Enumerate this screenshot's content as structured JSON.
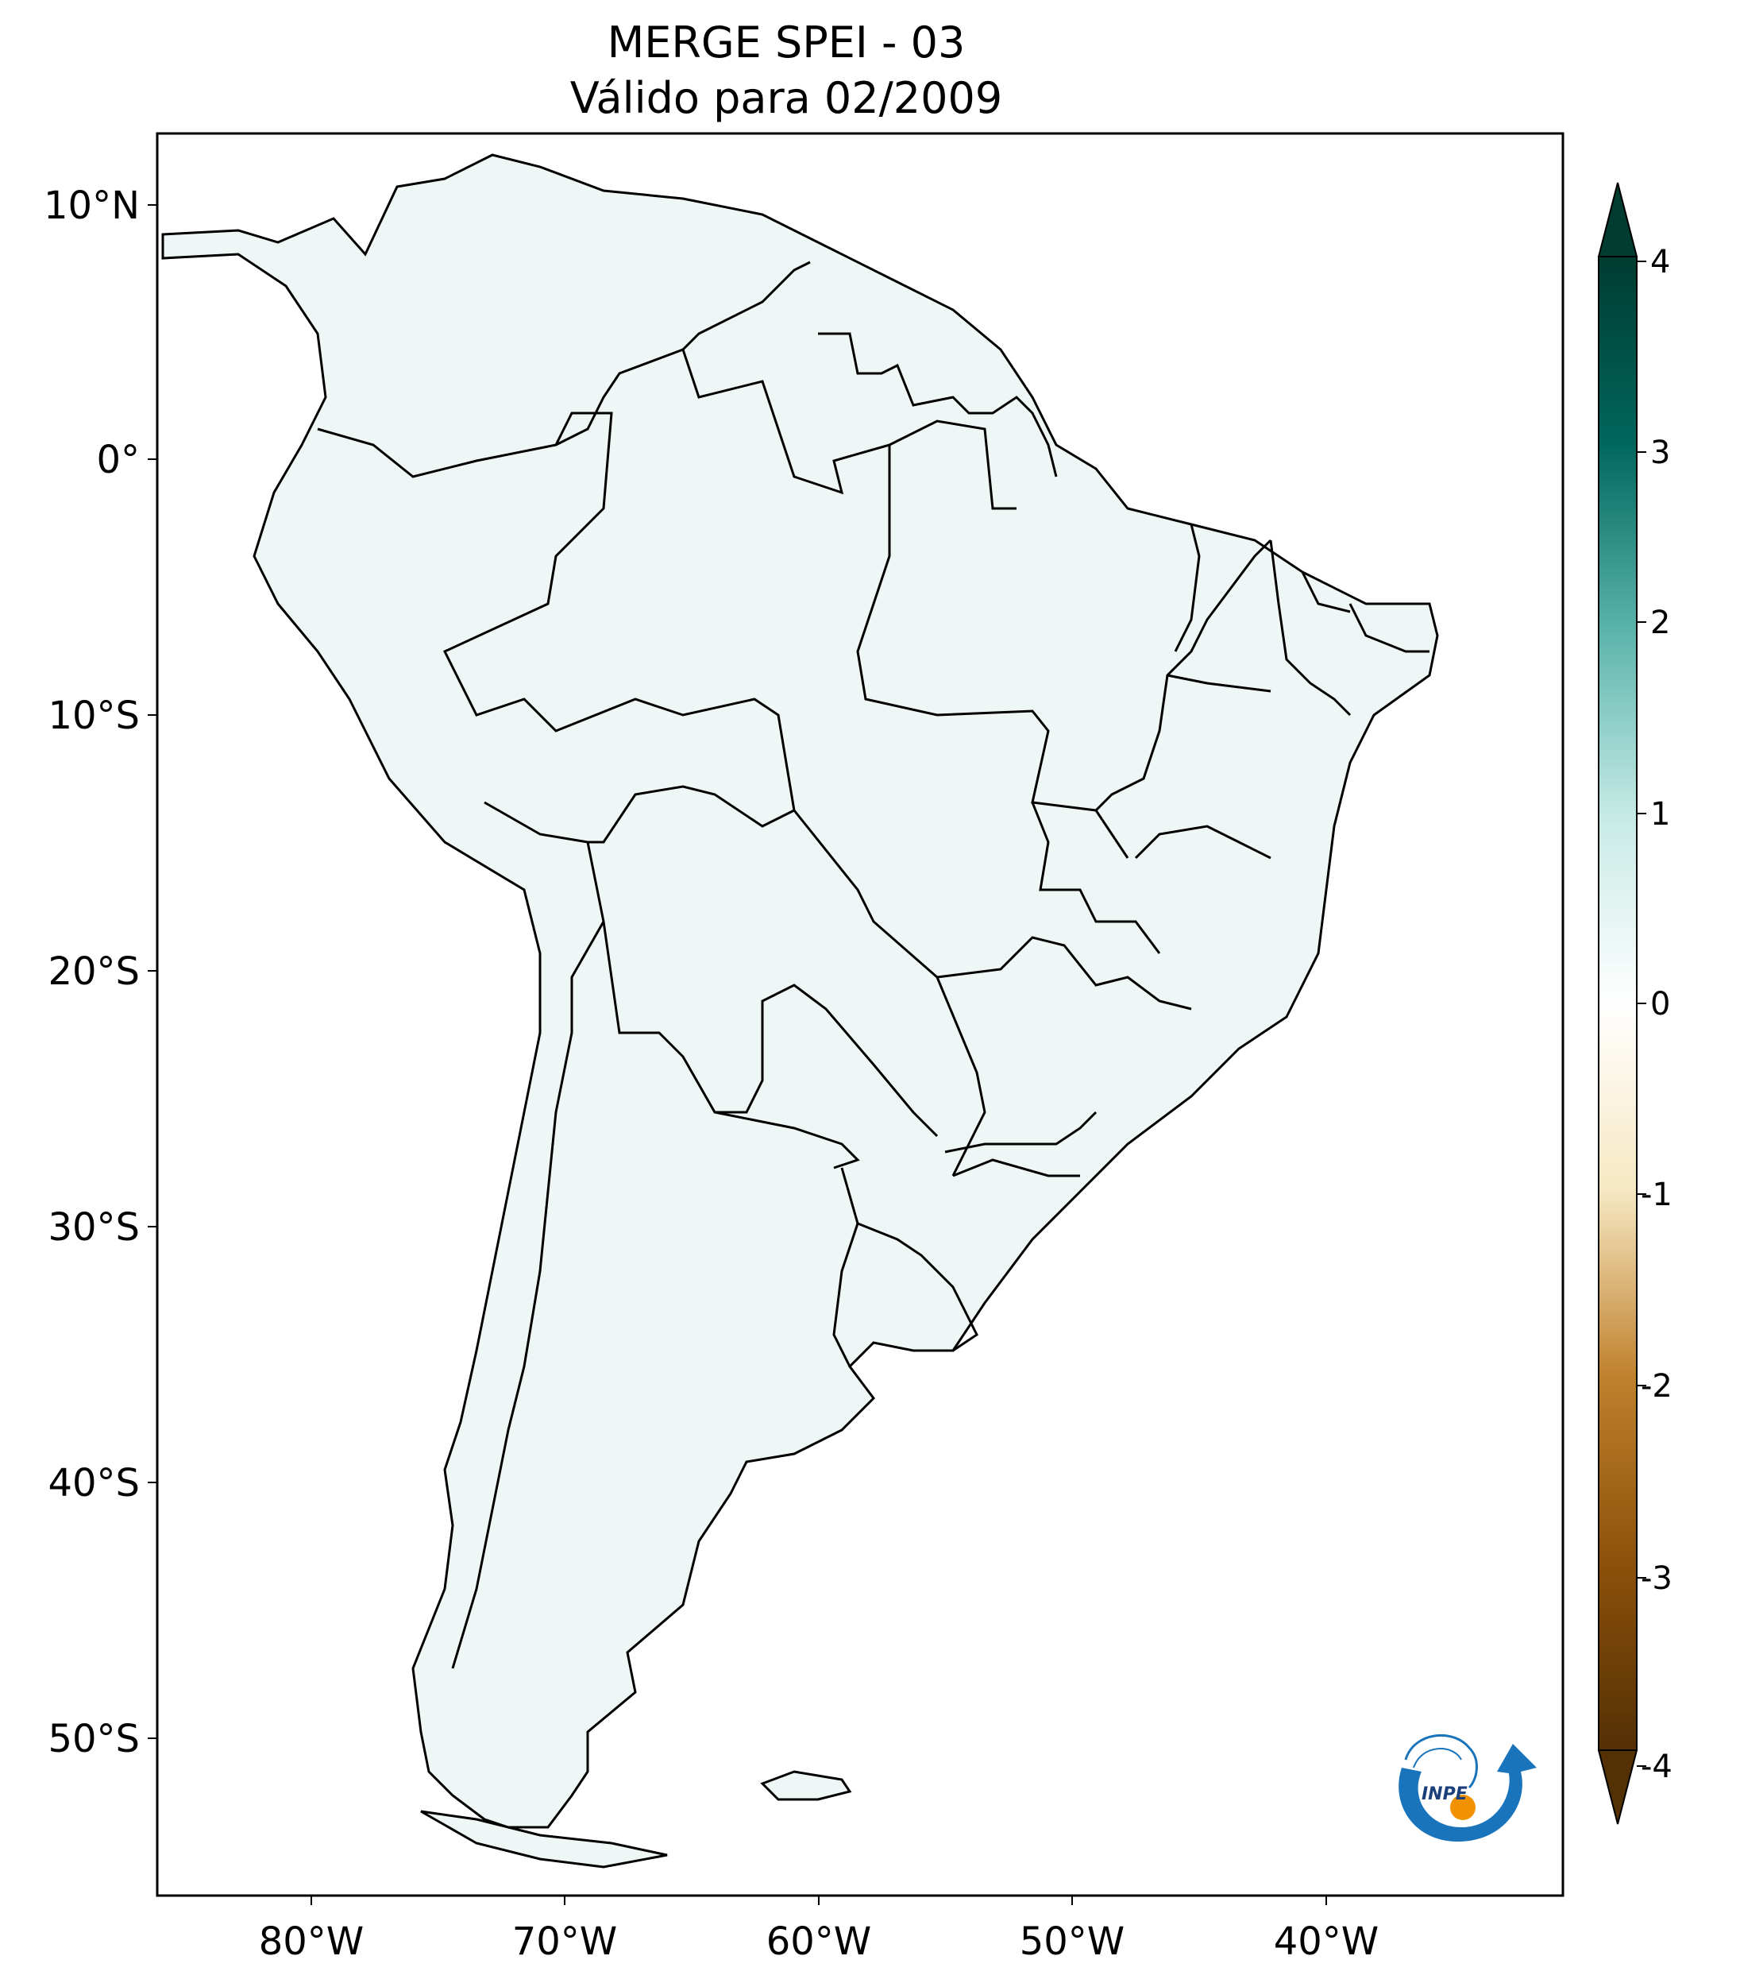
{
  "title": {
    "line1": "MERGE   SPEI - 03",
    "line2": "Válido para 02/2009"
  },
  "map": {
    "lon_labels": [
      "80°W",
      "70°W",
      "60°W",
      "50°W",
      "40°W"
    ],
    "lat_labels": [
      "10°N",
      "0°",
      "10°S",
      "20°S",
      "30°S",
      "40°S",
      "50°S"
    ]
  },
  "colorbar": {
    "ticks": [
      "4",
      "3",
      "2",
      "1",
      "0",
      "-1",
      "-2",
      "-3",
      "-4"
    ],
    "colors": {
      "max": "#003c30",
      "high": "#35978f",
      "mid_high": "#c7eae5",
      "zero": "#f5f5f5",
      "mid_low": "#f6e8c3",
      "low": "#bf812d",
      "min": "#543005"
    }
  },
  "logo": {
    "text": "INPE"
  }
}
